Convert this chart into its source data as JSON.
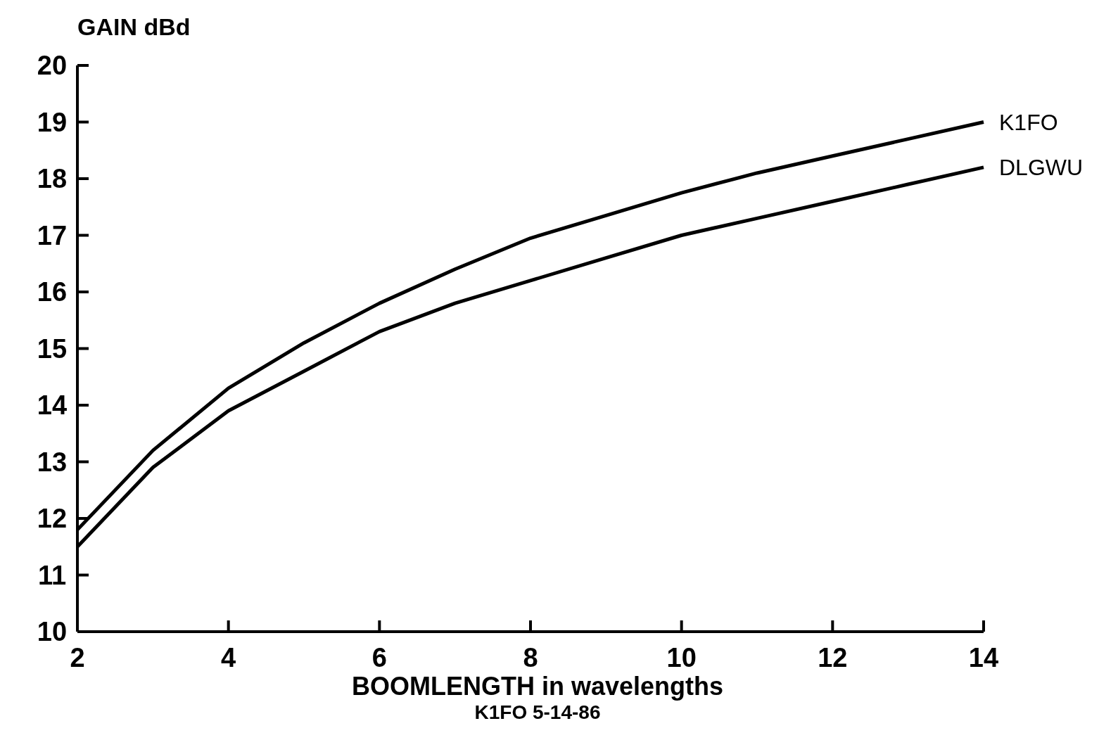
{
  "chart_data": {
    "type": "line",
    "xlabel": "BOOMLENGTH in wavelengths",
    "ylabel": "GAIN dBd",
    "annotations": [
      "K1FO 5-14-86"
    ],
    "x": [
      2,
      3,
      4,
      5,
      6,
      7,
      8,
      9,
      10,
      11,
      12,
      13,
      14
    ],
    "xlim": [
      2,
      14
    ],
    "xticks": [
      2,
      4,
      6,
      8,
      10,
      12,
      14
    ],
    "ylim": [
      10,
      20
    ],
    "yticks": [
      10,
      11,
      12,
      13,
      14,
      15,
      16,
      17,
      18,
      19,
      20
    ],
    "series": [
      {
        "name": "K1FO",
        "color": "#000000",
        "values": [
          11.8,
          13.2,
          14.3,
          15.1,
          15.8,
          16.4,
          16.95,
          17.35,
          17.75,
          18.1,
          18.4,
          18.7,
          19.0
        ]
      },
      {
        "name": "DLGWU",
        "color": "#000000",
        "values": [
          11.5,
          12.9,
          13.9,
          14.6,
          15.3,
          15.8,
          16.2,
          16.6,
          17.0,
          17.3,
          17.6,
          17.9,
          18.2
        ]
      }
    ],
    "grid": false,
    "line_style": "solid",
    "marker": "none"
  }
}
